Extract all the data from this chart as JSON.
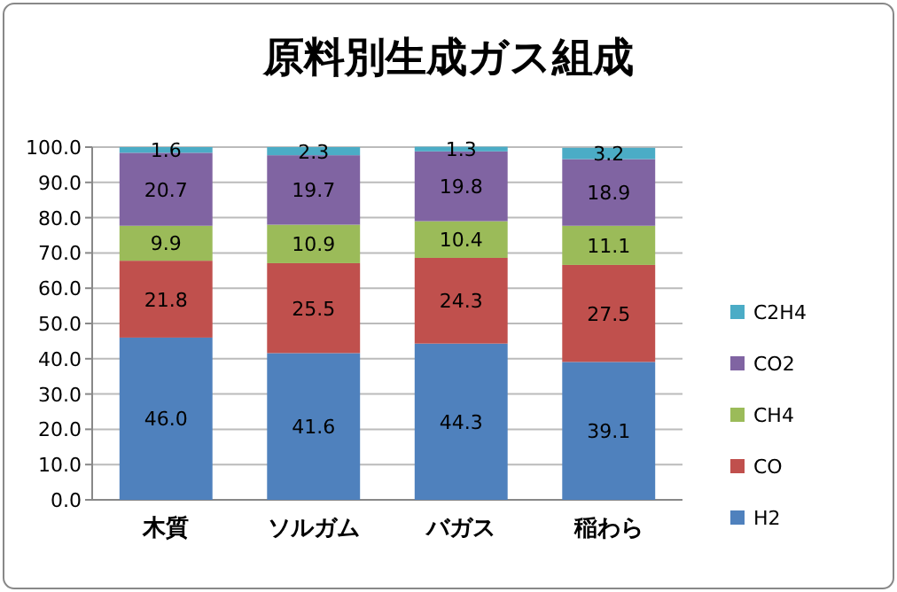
{
  "chart_data": {
    "type": "bar",
    "stacked": true,
    "title": "原料別生成ガス組成",
    "categories": [
      "木質",
      "ソルガム",
      "バガス",
      "稲わら"
    ],
    "series": [
      {
        "name": "H2",
        "color": "#4f81bd",
        "values": [
          46.0,
          41.6,
          44.3,
          39.1
        ],
        "value_labels": [
          "46.0",
          "41.6",
          "44.3",
          "39.1"
        ]
      },
      {
        "name": "CO",
        "color": "#c0504d",
        "values": [
          21.8,
          25.5,
          24.3,
          27.5
        ],
        "value_labels": [
          "21.8",
          "25.5",
          "24.3",
          "27.5"
        ]
      },
      {
        "name": "CH4",
        "color": "#9bbb59",
        "values": [
          9.9,
          10.9,
          10.4,
          11.1
        ],
        "value_labels": [
          "9.9",
          "10.9",
          "10.4",
          "11.1"
        ]
      },
      {
        "name": "CO2",
        "color": "#8064a2",
        "values": [
          20.7,
          19.7,
          19.8,
          18.9
        ],
        "value_labels": [
          "20.7",
          "19.7",
          "19.8",
          "18.9"
        ]
      },
      {
        "name": "C2H4",
        "color": "#4bacc6",
        "values": [
          1.6,
          2.3,
          1.3,
          3.2
        ],
        "value_labels": [
          "1.6",
          "2.3",
          "1.3",
          "3.2"
        ]
      }
    ],
    "ylim": [
      0,
      100
    ],
    "yticks": [
      {
        "value": 0,
        "label": "0.0"
      },
      {
        "value": 10,
        "label": "10.0"
      },
      {
        "value": 20,
        "label": "20.0"
      },
      {
        "value": 30,
        "label": "30.0"
      },
      {
        "value": 40,
        "label": "40.0"
      },
      {
        "value": 50,
        "label": "50.0"
      },
      {
        "value": 60,
        "label": "60.0"
      },
      {
        "value": 70,
        "label": "70.0"
      },
      {
        "value": 80,
        "label": "80.0"
      },
      {
        "value": 90,
        "label": "90.0"
      },
      {
        "value": 100,
        "label": "100.0"
      }
    ],
    "grid": "y",
    "legend": "right"
  }
}
